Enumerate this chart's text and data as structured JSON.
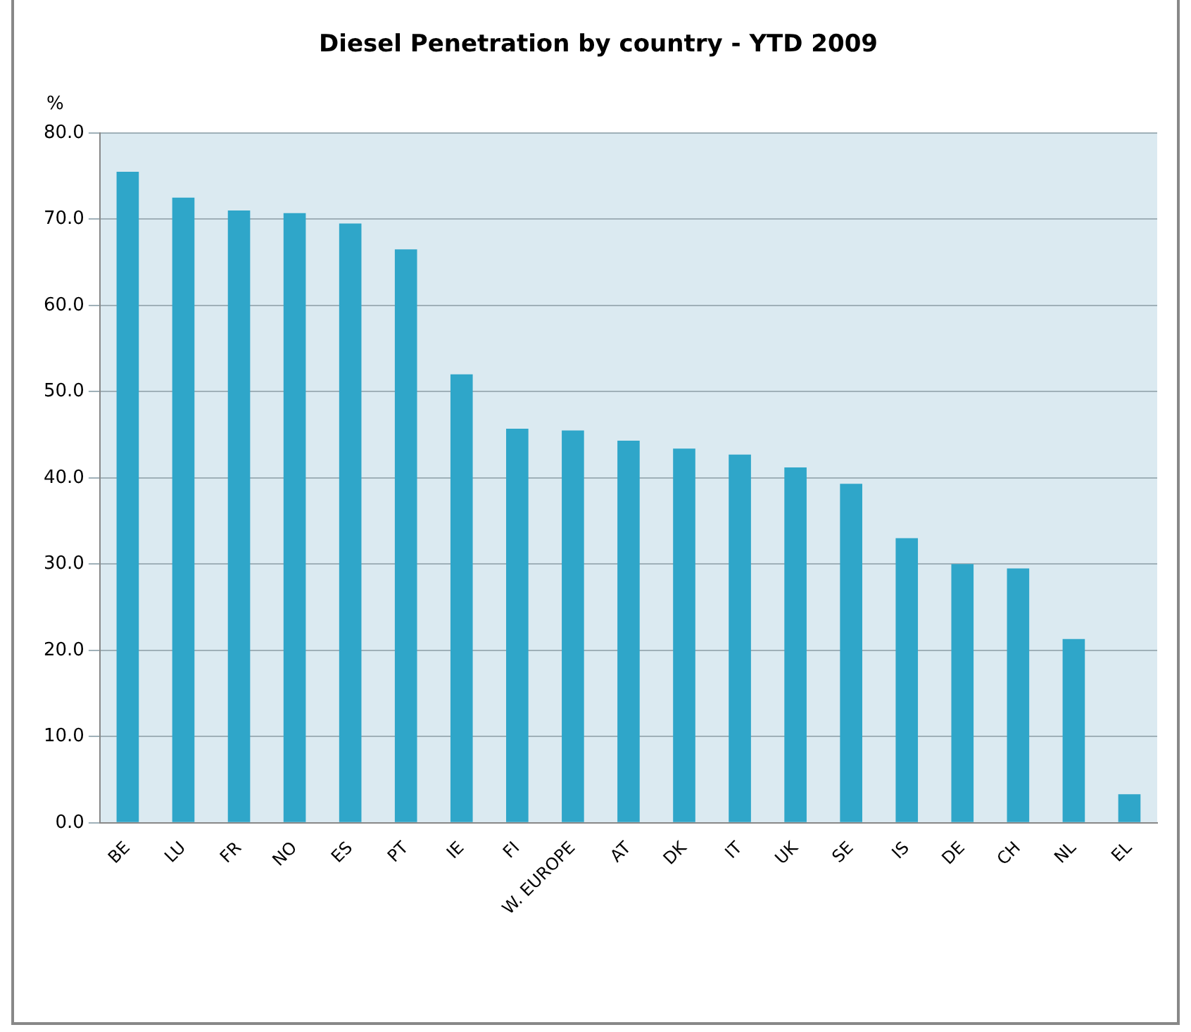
{
  "chart_data": {
    "type": "bar",
    "title": "Diesel Penetration by country - YTD 2009",
    "ylabel": "%",
    "categories": [
      "BE",
      "LU",
      "FR",
      "NO",
      "ES",
      "PT",
      "IE",
      "FI",
      "W. EUROPE",
      "AT",
      "DK",
      "IT",
      "UK",
      "SE",
      "IS",
      "DE",
      "CH",
      "NL",
      "EL"
    ],
    "values": [
      75.5,
      72.5,
      71,
      70.7,
      69.5,
      66.5,
      52,
      45.7,
      45.5,
      44.3,
      43.4,
      42.7,
      41.2,
      39.3,
      33,
      30,
      29.5,
      21.3,
      3.3
    ],
    "color": "#2fa6c9",
    "ylim": [
      0,
      80
    ],
    "yticks": [
      {
        "value": 0,
        "label": "0.0"
      },
      {
        "value": 10,
        "label": "10.0"
      },
      {
        "value": 20,
        "label": "20.0"
      },
      {
        "value": 30,
        "label": "30.0"
      },
      {
        "value": 40,
        "label": "40.0"
      },
      {
        "value": 50,
        "label": "50.0"
      },
      {
        "value": 60,
        "label": "60.0"
      },
      {
        "value": 70,
        "label": "70.0"
      },
      {
        "value": 80,
        "label": "80.0"
      }
    ],
    "grid": "y",
    "legend": false
  }
}
